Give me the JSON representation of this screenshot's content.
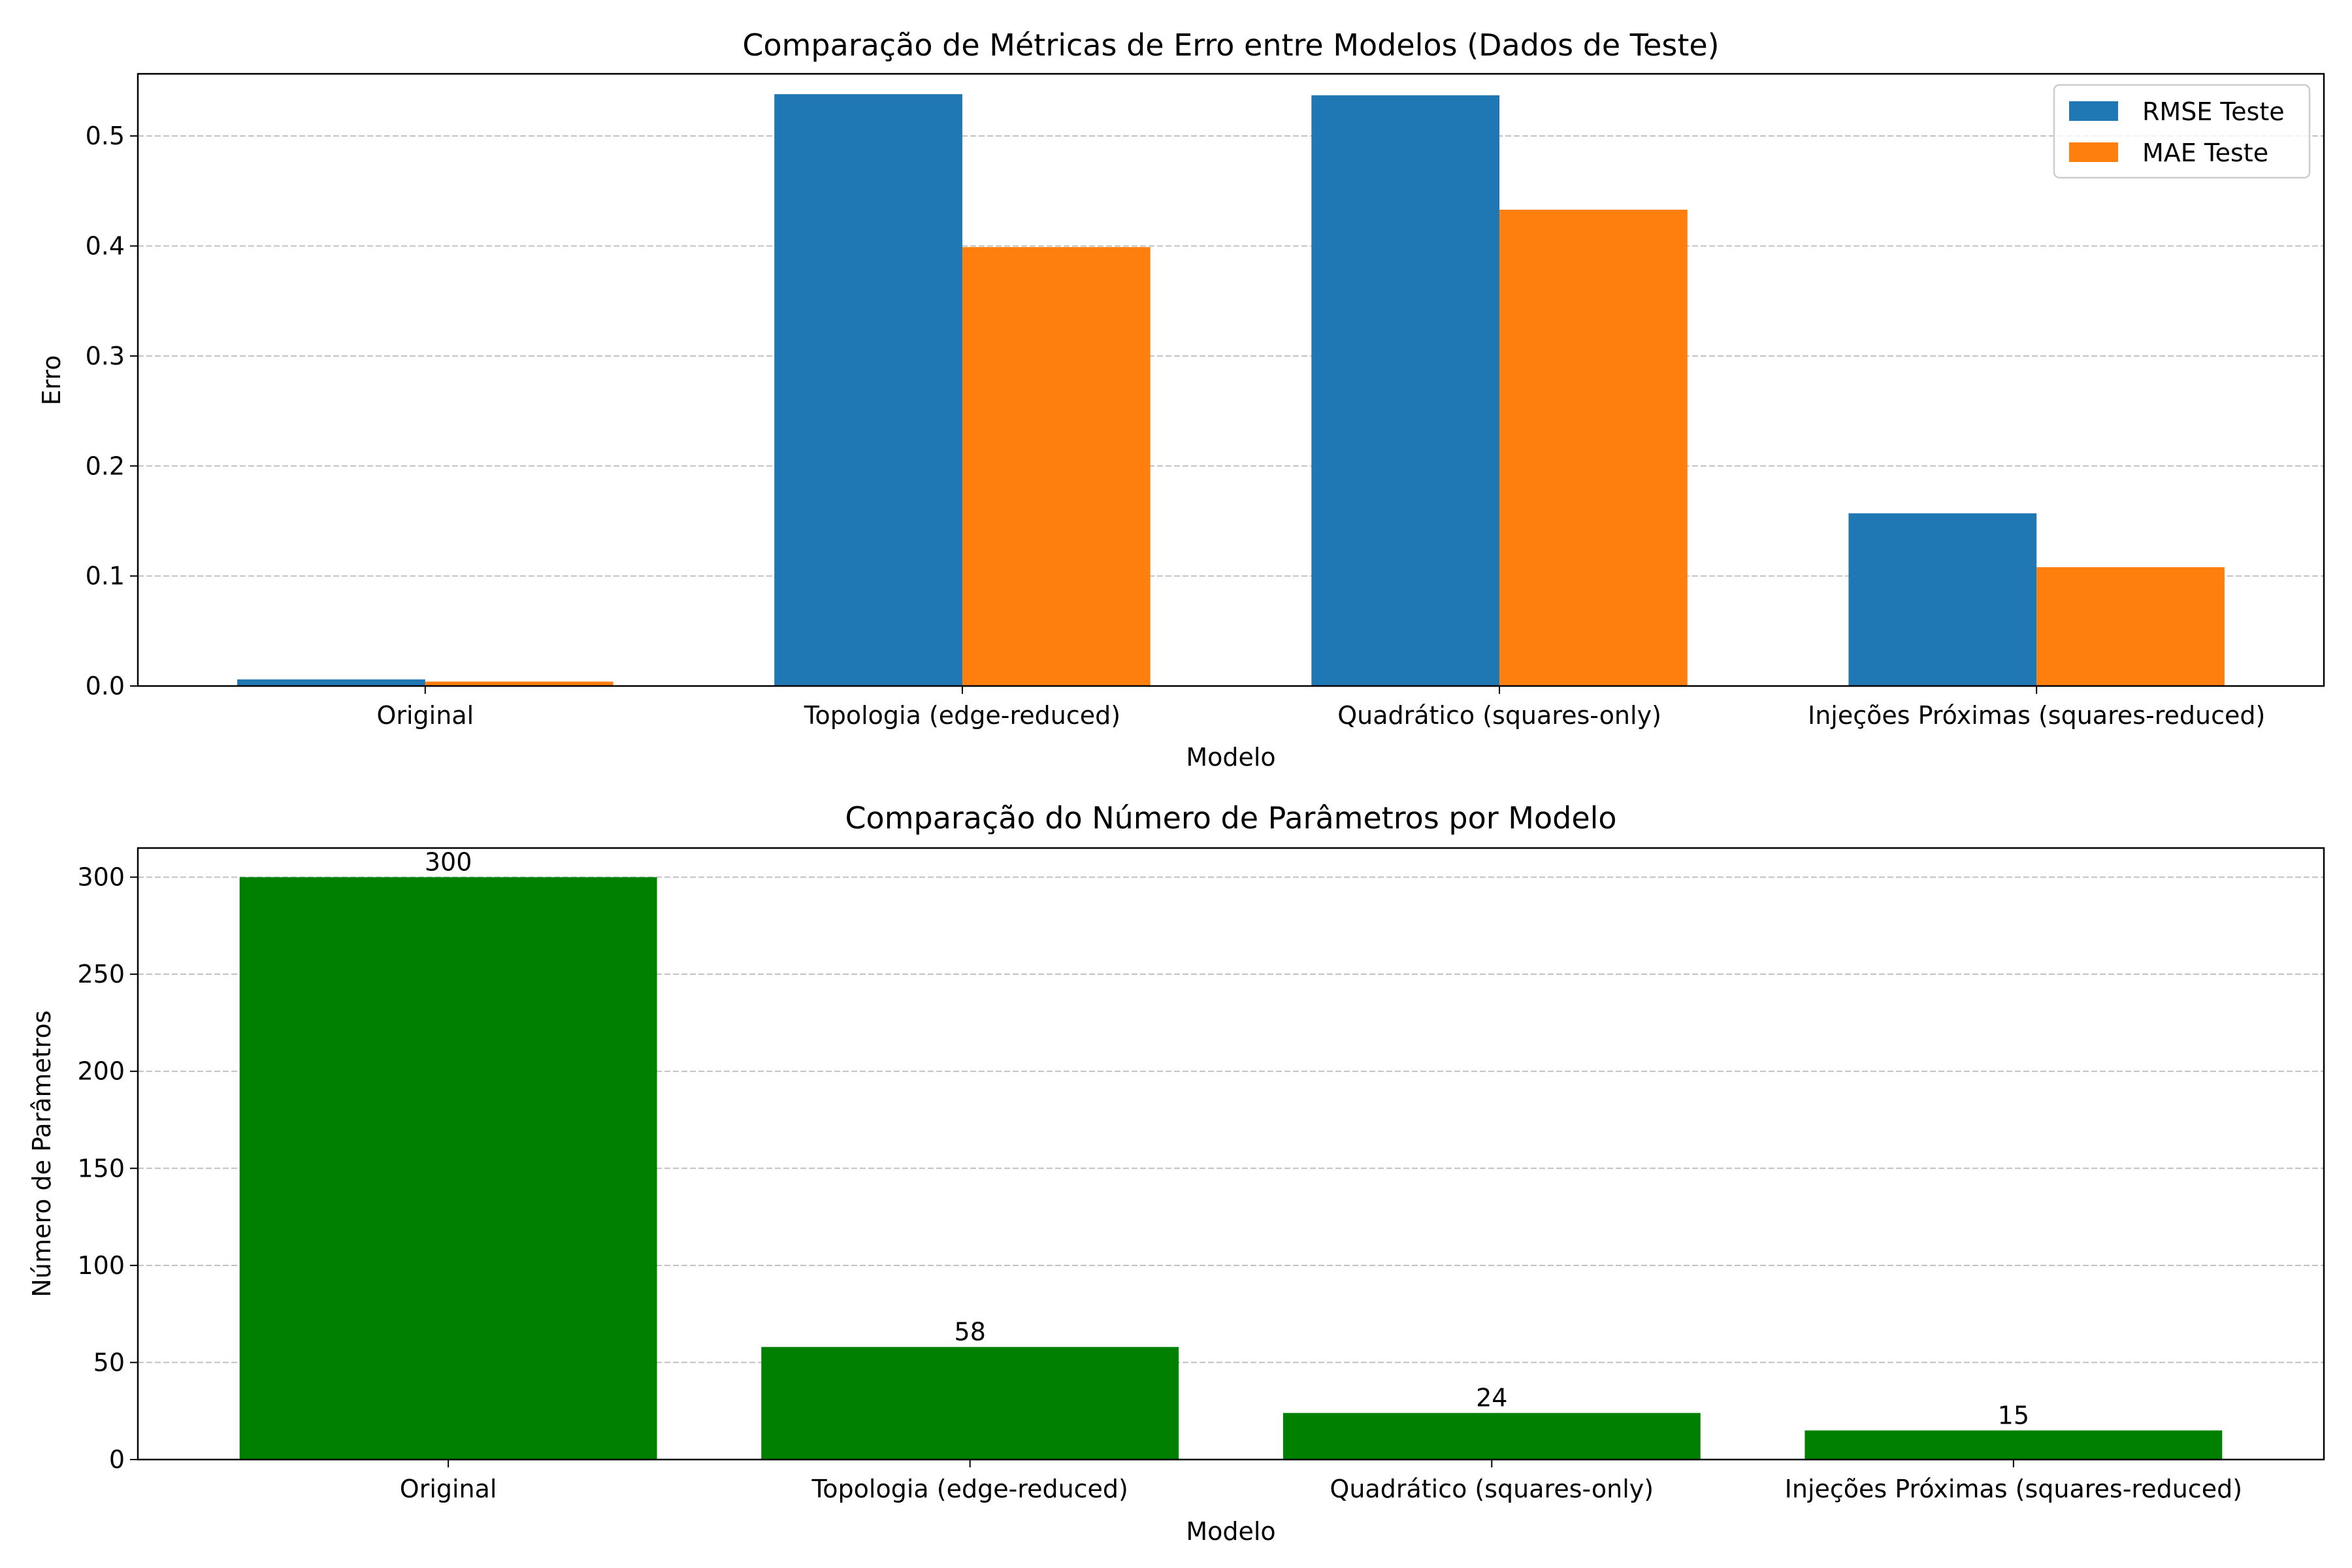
{
  "colors": {
    "rmse": "#1f77b4",
    "mae": "#ff7f0e",
    "params": "#008000",
    "grid": "#b0b0b0"
  },
  "chart_data": [
    {
      "type": "bar",
      "title": "Comparação de Métricas de Erro entre Modelos (Dados de Teste)",
      "xlabel": "Modelo",
      "ylabel": "Erro",
      "categories": [
        "Original",
        "Topologia (edge-reduced)",
        "Quadrático (squares-only)",
        "Injeções Próximas (squares-reduced)"
      ],
      "series": [
        {
          "name": "RMSE Teste",
          "values": [
            0.006,
            0.538,
            0.537,
            0.157
          ]
        },
        {
          "name": "MAE Teste",
          "values": [
            0.004,
            0.399,
            0.433,
            0.108
          ]
        }
      ],
      "ylim": [
        0,
        0.5565
      ],
      "yticks": [
        0.0,
        0.1,
        0.2,
        0.3,
        0.4,
        0.5
      ],
      "ytick_labels": [
        "0.0",
        "0.1",
        "0.2",
        "0.3",
        "0.4",
        "0.5"
      ],
      "grid": "y dashed",
      "legend": "top-right"
    },
    {
      "type": "bar",
      "title": "Comparação do Número de Parâmetros por Modelo",
      "xlabel": "Modelo",
      "ylabel": "Número de Parâmetros",
      "categories": [
        "Original",
        "Topologia (edge-reduced)",
        "Quadrático (squares-only)",
        "Injeções Próximas (squares-reduced)"
      ],
      "series": [
        {
          "values": [
            300,
            58,
            24,
            15
          ]
        }
      ],
      "data_labels": [
        "300",
        "58",
        "24",
        "15"
      ],
      "ylim": [
        0,
        315
      ],
      "yticks": [
        0,
        50,
        100,
        150,
        200,
        250,
        300
      ],
      "ytick_labels": [
        "0",
        "50",
        "100",
        "150",
        "200",
        "250",
        "300"
      ],
      "grid": "y dashed"
    }
  ]
}
